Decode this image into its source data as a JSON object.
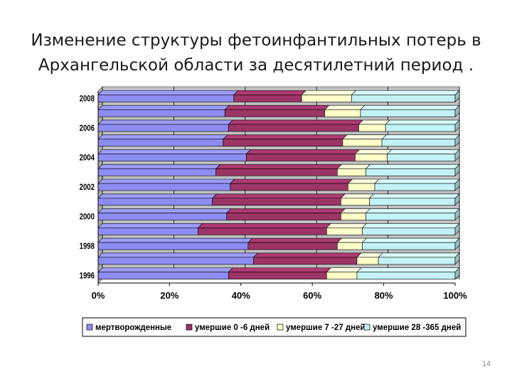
{
  "slide": {
    "title": "Изменение структуры фетоинфантильных потерь в Архангельской области за десятилетний период .",
    "page_number": "14"
  },
  "chart_data": {
    "type": "bar",
    "orientation": "horizontal",
    "stacked": "percent",
    "style": "3d",
    "categories": [
      "1996",
      "1997",
      "1998",
      "1999",
      "2000",
      "2001",
      "2002",
      "2003",
      "2004",
      "2005",
      "2006",
      "2007",
      "2008"
    ],
    "category_tick_labels": [
      "1996",
      "",
      "1998",
      "",
      "2000",
      "",
      "2002",
      "",
      "2004",
      "",
      "2006",
      "",
      "2008"
    ],
    "series": [
      {
        "name": "мертворожденные",
        "color": "#8c8cf2",
        "values": [
          36.5,
          43.5,
          42,
          28,
          36,
          32,
          37,
          33,
          41.5,
          35,
          36.5,
          35.5,
          38
        ]
      },
      {
        "name": "умершие 0 -6 дней",
        "color": "#9c3466",
        "values": [
          27.5,
          29,
          25,
          36,
          32,
          36,
          33,
          34,
          30.5,
          33.5,
          36.5,
          28,
          19
        ]
      },
      {
        "name": "умершие 7 -27 дней",
        "color": "#ffffc8",
        "values": [
          8.5,
          6,
          7,
          10,
          7,
          8,
          7.5,
          8,
          9,
          11,
          7.5,
          10,
          14
        ]
      },
      {
        "name": "умершие 28 -365 дней",
        "color": "#c2f2f5",
        "values": [
          27.5,
          21.5,
          26,
          26,
          25,
          24,
          22.5,
          25,
          19,
          20.5,
          19.5,
          26.5,
          29
        ]
      }
    ],
    "x_tick_labels": [
      "0%",
      "20%",
      "40%",
      "60%",
      "80%",
      "100%"
    ],
    "xlim": [
      0,
      100
    ],
    "grid": true,
    "legend": "bottom",
    "plot_background": "#c0c0c0"
  }
}
